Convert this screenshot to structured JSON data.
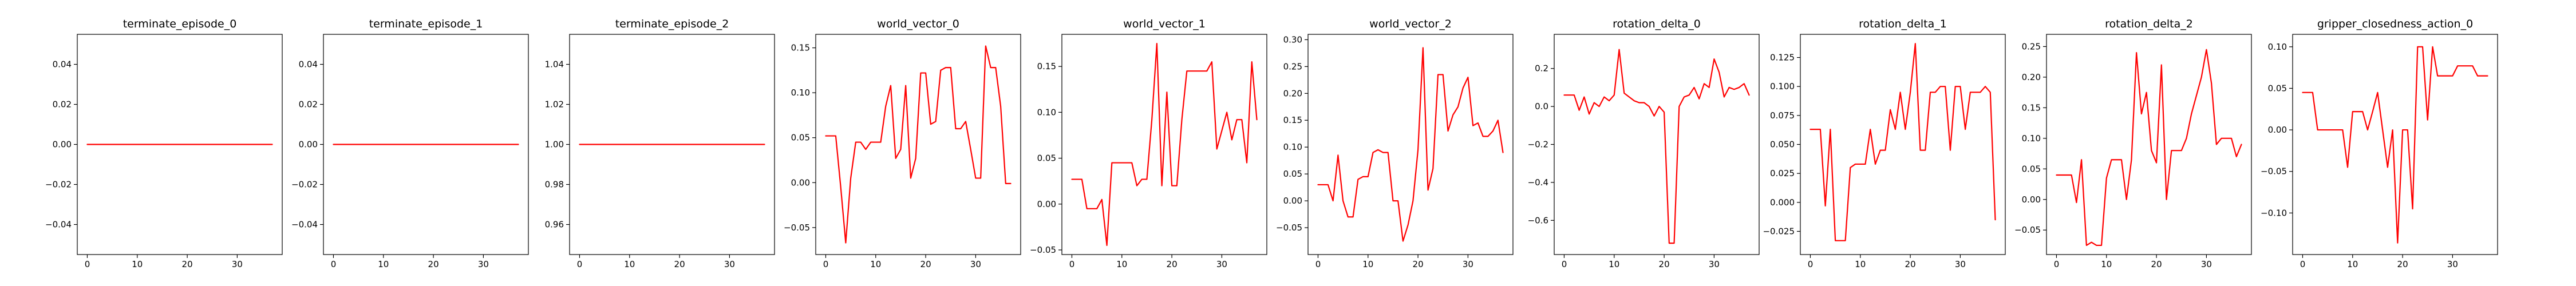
{
  "figure": {
    "background": "#ffffff",
    "line_color": "#ff0000"
  },
  "chart_data": [
    {
      "type": "line",
      "title": "terminate_episode_0",
      "xlim": [
        -2,
        39
      ],
      "ylim": [
        -0.055,
        0.055
      ],
      "xticks": [
        0,
        10,
        20,
        30
      ],
      "yticks": [
        -0.04,
        -0.02,
        0.0,
        0.02,
        0.04
      ],
      "ytick_labels": [
        "−0.04",
        "−0.02",
        "0.00",
        "0.02",
        "0.04"
      ],
      "grid": false,
      "x": [
        0,
        1,
        2,
        3,
        4,
        5,
        6,
        7,
        8,
        9,
        10,
        11,
        12,
        13,
        14,
        15,
        16,
        17,
        18,
        19,
        20,
        21,
        22,
        23,
        24,
        25,
        26,
        27,
        28,
        29,
        30,
        31,
        32,
        33,
        34,
        35,
        36,
        37
      ],
      "values": [
        0,
        0,
        0,
        0,
        0,
        0,
        0,
        0,
        0,
        0,
        0,
        0,
        0,
        0,
        0,
        0,
        0,
        0,
        0,
        0,
        0,
        0,
        0,
        0,
        0,
        0,
        0,
        0,
        0,
        0,
        0,
        0,
        0,
        0,
        0,
        0,
        0,
        0
      ]
    },
    {
      "type": "line",
      "title": "terminate_episode_1",
      "xlim": [
        -2,
        39
      ],
      "ylim": [
        -0.055,
        0.055
      ],
      "xticks": [
        0,
        10,
        20,
        30
      ],
      "yticks": [
        -0.04,
        -0.02,
        0.0,
        0.02,
        0.04
      ],
      "ytick_labels": [
        "−0.04",
        "−0.02",
        "0.00",
        "0.02",
        "0.04"
      ],
      "grid": false,
      "x": [
        0,
        1,
        2,
        3,
        4,
        5,
        6,
        7,
        8,
        9,
        10,
        11,
        12,
        13,
        14,
        15,
        16,
        17,
        18,
        19,
        20,
        21,
        22,
        23,
        24,
        25,
        26,
        27,
        28,
        29,
        30,
        31,
        32,
        33,
        34,
        35,
        36,
        37
      ],
      "values": [
        0,
        0,
        0,
        0,
        0,
        0,
        0,
        0,
        0,
        0,
        0,
        0,
        0,
        0,
        0,
        0,
        0,
        0,
        0,
        0,
        0,
        0,
        0,
        0,
        0,
        0,
        0,
        0,
        0,
        0,
        0,
        0,
        0,
        0,
        0,
        0,
        0,
        0
      ]
    },
    {
      "type": "line",
      "title": "terminate_episode_2",
      "xlim": [
        -2,
        39
      ],
      "ylim": [
        0.945,
        1.055
      ],
      "xticks": [
        0,
        10,
        20,
        30
      ],
      "yticks": [
        0.96,
        0.98,
        1.0,
        1.02,
        1.04
      ],
      "ytick_labels": [
        "0.96",
        "0.98",
        "1.00",
        "1.02",
        "1.04"
      ],
      "grid": false,
      "x": [
        0,
        1,
        2,
        3,
        4,
        5,
        6,
        7,
        8,
        9,
        10,
        11,
        12,
        13,
        14,
        15,
        16,
        17,
        18,
        19,
        20,
        21,
        22,
        23,
        24,
        25,
        26,
        27,
        28,
        29,
        30,
        31,
        32,
        33,
        34,
        35,
        36,
        37
      ],
      "values": [
        1,
        1,
        1,
        1,
        1,
        1,
        1,
        1,
        1,
        1,
        1,
        1,
        1,
        1,
        1,
        1,
        1,
        1,
        1,
        1,
        1,
        1,
        1,
        1,
        1,
        1,
        1,
        1,
        1,
        1,
        1,
        1,
        1,
        1,
        1,
        1,
        1,
        1
      ]
    },
    {
      "type": "line",
      "title": "world_vector_0",
      "xlim": [
        -2,
        39
      ],
      "ylim": [
        -0.08,
        0.165
      ],
      "xticks": [
        0,
        10,
        20,
        30
      ],
      "yticks": [
        -0.05,
        0.0,
        0.05,
        0.1,
        0.15
      ],
      "ytick_labels": [
        "−0.05",
        "0.00",
        "0.05",
        "0.10",
        "0.15"
      ],
      "grid": false,
      "x": [
        0,
        1,
        2,
        3,
        4,
        5,
        6,
        7,
        8,
        9,
        10,
        11,
        12,
        13,
        14,
        15,
        16,
        17,
        18,
        19,
        20,
        21,
        22,
        23,
        24,
        25,
        26,
        27,
        28,
        29,
        30,
        31,
        32,
        33,
        34,
        35,
        36,
        37
      ],
      "values": [
        0.052,
        0.052,
        0.052,
        -0.005,
        -0.067,
        0.005,
        0.045,
        0.045,
        0.037,
        0.045,
        0.045,
        0.045,
        0.085,
        0.108,
        0.027,
        0.037,
        0.108,
        0.005,
        0.027,
        0.122,
        0.122,
        0.065,
        0.068,
        0.125,
        0.128,
        0.128,
        0.06,
        0.06,
        0.068,
        0.037,
        0.005,
        0.005,
        0.152,
        0.128,
        0.128,
        0.085,
        -0.001,
        -0.001
      ]
    },
    {
      "type": "line",
      "title": "world_vector_1",
      "xlim": [
        -2,
        39
      ],
      "ylim": [
        -0.055,
        0.185
      ],
      "xticks": [
        0,
        10,
        20,
        30
      ],
      "yticks": [
        -0.05,
        0.0,
        0.05,
        0.1,
        0.15
      ],
      "ytick_labels": [
        "−0.05",
        "0.00",
        "0.05",
        "0.10",
        "0.15"
      ],
      "grid": false,
      "x": [
        0,
        1,
        2,
        3,
        4,
        5,
        6,
        7,
        8,
        9,
        10,
        11,
        12,
        13,
        14,
        15,
        16,
        17,
        18,
        19,
        20,
        21,
        22,
        23,
        24,
        25,
        26,
        27,
        28,
        29,
        30,
        31,
        32,
        33,
        34,
        35,
        36,
        37
      ],
      "values": [
        0.027,
        0.027,
        0.027,
        -0.005,
        -0.005,
        -0.005,
        0.005,
        -0.045,
        0.045,
        0.045,
        0.045,
        0.045,
        0.045,
        0.02,
        0.027,
        0.027,
        0.092,
        0.175,
        0.02,
        0.122,
        0.02,
        0.02,
        0.092,
        0.145,
        0.145,
        0.145,
        0.145,
        0.145,
        0.155,
        0.06,
        0.08,
        0.1,
        0.07,
        0.092,
        0.092,
        0.045,
        0.155,
        0.092
      ]
    },
    {
      "type": "line",
      "title": "world_vector_2",
      "xlim": [
        -2,
        39
      ],
      "ylim": [
        -0.1,
        0.31
      ],
      "xticks": [
        0,
        10,
        20,
        30
      ],
      "yticks": [
        -0.05,
        0.0,
        0.05,
        0.1,
        0.15,
        0.2,
        0.25,
        0.3
      ],
      "ytick_labels": [
        "−0.05",
        "0.00",
        "0.05",
        "0.10",
        "0.15",
        "0.20",
        "0.25",
        "0.30"
      ],
      "grid": false,
      "x": [
        0,
        1,
        2,
        3,
        4,
        5,
        6,
        7,
        8,
        9,
        10,
        11,
        12,
        13,
        14,
        15,
        16,
        17,
        18,
        19,
        20,
        21,
        22,
        23,
        24,
        25,
        26,
        27,
        28,
        29,
        30,
        31,
        32,
        33,
        34,
        35,
        36,
        37
      ],
      "values": [
        0.03,
        0.03,
        0.03,
        0.0,
        0.085,
        0.0,
        -0.03,
        -0.03,
        0.04,
        0.045,
        0.045,
        0.09,
        0.095,
        0.09,
        0.09,
        0.0,
        0.0,
        -0.075,
        -0.045,
        0.0,
        0.095,
        0.285,
        0.02,
        0.06,
        0.235,
        0.235,
        0.13,
        0.16,
        0.175,
        0.21,
        0.23,
        0.14,
        0.145,
        0.12,
        0.12,
        0.13,
        0.15,
        0.09
      ]
    },
    {
      "type": "line",
      "title": "rotation_delta_0",
      "xlim": [
        -2,
        39
      ],
      "ylim": [
        -0.78,
        0.38
      ],
      "xticks": [
        0,
        10,
        20,
        30
      ],
      "yticks": [
        -0.6,
        -0.4,
        -0.2,
        0.0,
        0.2
      ],
      "ytick_labels": [
        "−0.6",
        "−0.4",
        "−0.2",
        "0.0",
        "0.2"
      ],
      "grid": false,
      "x": [
        0,
        1,
        2,
        3,
        4,
        5,
        6,
        7,
        8,
        9,
        10,
        11,
        12,
        13,
        14,
        15,
        16,
        17,
        18,
        19,
        20,
        21,
        22,
        23,
        24,
        25,
        26,
        27,
        28,
        29,
        30,
        31,
        32,
        33,
        34,
        35,
        36,
        37
      ],
      "values": [
        0.06,
        0.06,
        0.06,
        -0.02,
        0.05,
        -0.04,
        0.02,
        0.0,
        0.05,
        0.03,
        0.06,
        0.3,
        0.07,
        0.05,
        0.03,
        0.02,
        0.02,
        0.0,
        -0.05,
        0.0,
        -0.03,
        -0.72,
        -0.72,
        0.0,
        0.05,
        0.06,
        0.1,
        0.04,
        0.12,
        0.1,
        0.25,
        0.18,
        0.05,
        0.1,
        0.09,
        0.1,
        0.12,
        0.06
      ]
    },
    {
      "type": "line",
      "title": "rotation_delta_1",
      "xlim": [
        -2,
        39
      ],
      "ylim": [
        -0.045,
        0.145
      ],
      "xticks": [
        0,
        10,
        20,
        30
      ],
      "yticks": [
        -0.025,
        0.0,
        0.025,
        0.05,
        0.075,
        0.1,
        0.125
      ],
      "ytick_labels": [
        "−0.025",
        "0.000",
        "0.025",
        "0.050",
        "0.075",
        "0.100",
        "0.125"
      ],
      "grid": false,
      "x": [
        0,
        1,
        2,
        3,
        4,
        5,
        6,
        7,
        8,
        9,
        10,
        11,
        12,
        13,
        14,
        15,
        16,
        17,
        18,
        19,
        20,
        21,
        22,
        23,
        24,
        25,
        26,
        27,
        28,
        29,
        30,
        31,
        32,
        33,
        34,
        35,
        36,
        37
      ],
      "values": [
        0.063,
        0.063,
        0.063,
        -0.003,
        0.063,
        -0.033,
        -0.033,
        -0.033,
        0.03,
        0.033,
        0.033,
        0.033,
        0.063,
        0.033,
        0.045,
        0.045,
        0.08,
        0.063,
        0.095,
        0.063,
        0.095,
        0.137,
        0.045,
        0.045,
        0.095,
        0.095,
        0.1,
        0.1,
        0.045,
        0.1,
        0.1,
        0.063,
        0.095,
        0.095,
        0.095,
        0.1,
        0.095,
        -0.015
      ]
    },
    {
      "type": "line",
      "title": "rotation_delta_2",
      "xlim": [
        -2,
        39
      ],
      "ylim": [
        -0.09,
        0.27
      ],
      "xticks": [
        0,
        10,
        20,
        30
      ],
      "yticks": [
        -0.05,
        0.0,
        0.05,
        0.1,
        0.15,
        0.2,
        0.25
      ],
      "ytick_labels": [
        "−0.05",
        "0.00",
        "0.05",
        "0.10",
        "0.15",
        "0.20",
        "0.25"
      ],
      "grid": false,
      "x": [
        0,
        1,
        2,
        3,
        4,
        5,
        6,
        7,
        8,
        9,
        10,
        11,
        12,
        13,
        14,
        15,
        16,
        17,
        18,
        19,
        20,
        21,
        22,
        23,
        24,
        25,
        26,
        27,
        28,
        29,
        30,
        31,
        32,
        33,
        34,
        35,
        36,
        37
      ],
      "values": [
        0.04,
        0.04,
        0.04,
        0.04,
        -0.005,
        0.065,
        -0.075,
        -0.07,
        -0.075,
        -0.075,
        0.035,
        0.065,
        0.065,
        0.065,
        0.0,
        0.065,
        0.24,
        0.14,
        0.175,
        0.08,
        0.06,
        0.22,
        0.0,
        0.08,
        0.08,
        0.08,
        0.1,
        0.14,
        0.17,
        0.2,
        0.245,
        0.19,
        0.09,
        0.1,
        0.1,
        0.1,
        0.07,
        0.09
      ]
    },
    {
      "type": "line",
      "title": "gripper_closedness_action_0",
      "xlim": [
        -2,
        39
      ],
      "ylim": [
        -0.15,
        0.115
      ],
      "xticks": [
        0,
        10,
        20,
        30
      ],
      "yticks": [
        -0.1,
        -0.05,
        0.0,
        0.05,
        0.1
      ],
      "ytick_labels": [
        "−0.10",
        "−0.05",
        "0.00",
        "0.05",
        "0.10"
      ],
      "grid": false,
      "x": [
        0,
        1,
        2,
        3,
        4,
        5,
        6,
        7,
        8,
        9,
        10,
        11,
        12,
        13,
        14,
        15,
        16,
        17,
        18,
        19,
        20,
        21,
        22,
        23,
        24,
        25,
        26,
        27,
        28,
        29,
        30,
        31,
        32,
        33,
        34,
        35,
        36,
        37
      ],
      "values": [
        0.045,
        0.045,
        0.045,
        0.0,
        0.0,
        0.0,
        0.0,
        0.0,
        0.0,
        -0.045,
        0.022,
        0.022,
        0.022,
        0.0,
        0.022,
        0.045,
        0.0,
        -0.045,
        0.0,
        -0.136,
        0.0,
        0.0,
        -0.095,
        0.1,
        0.1,
        0.012,
        0.1,
        0.065,
        0.065,
        0.065,
        0.065,
        0.077,
        0.077,
        0.077,
        0.077,
        0.065,
        0.065,
        0.065
      ]
    }
  ]
}
